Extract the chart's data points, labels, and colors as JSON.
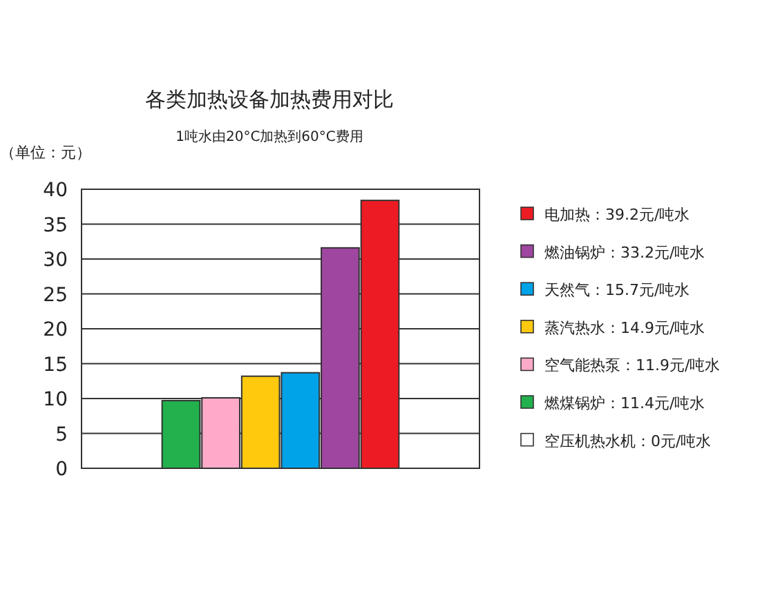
{
  "chart_data": {
    "type": "bar",
    "title": "各类加热设备加热费用对比",
    "subtitle": "1吨水由20°C加热到60°C费用",
    "ylabel": "（单位：元）",
    "categories": [
      null,
      null,
      null,
      null,
      null,
      null,
      null,
      null,
      null,
      null
    ],
    "ylim": [
      0,
      40
    ],
    "yticks": [
      0,
      5,
      10,
      15,
      20,
      25,
      30,
      35,
      40
    ],
    "grid": "y",
    "legend": "right",
    "stacked": true,
    "series": [
      {
        "name": "电加热：39.2元/吨水",
        "color": "#ed1c24",
        "values": [
          null,
          null,
          null,
          null,
          null,
          null,
          null,
          38.4,
          null,
          null
        ]
      },
      {
        "name": "燃油锅炉：33.2元/吨水",
        "color": "#9e46a0",
        "values": [
          null,
          null,
          null,
          null,
          null,
          null,
          31.6,
          null,
          null,
          null
        ]
      },
      {
        "name": "天然气：15.7元/吨水",
        "color": "#00a2e8",
        "values": [
          null,
          null,
          null,
          null,
          null,
          13.7,
          null,
          null,
          null,
          null
        ]
      },
      {
        "name": "蒸汽热水：14.9元/吨水",
        "color": "#ffc90e",
        "values": [
          null,
          null,
          null,
          null,
          13.2,
          null,
          null,
          null,
          null,
          null
        ]
      },
      {
        "name": "空气能热泵：11.9元/吨水",
        "color": "#ffaac9",
        "values": [
          null,
          null,
          null,
          10.1,
          null,
          null,
          null,
          null,
          null,
          null
        ]
      },
      {
        "name": "燃煤锅炉：11.4元/吨水",
        "color": "#22b14c",
        "values": [
          null,
          null,
          9.7,
          null,
          null,
          null,
          null,
          null,
          null,
          null
        ]
      },
      {
        "name": "空压机热水机：0元/吨水",
        "color": "#ffffff",
        "values": [
          null,
          0,
          null,
          null,
          null,
          null,
          null,
          null,
          null,
          null
        ]
      }
    ]
  }
}
